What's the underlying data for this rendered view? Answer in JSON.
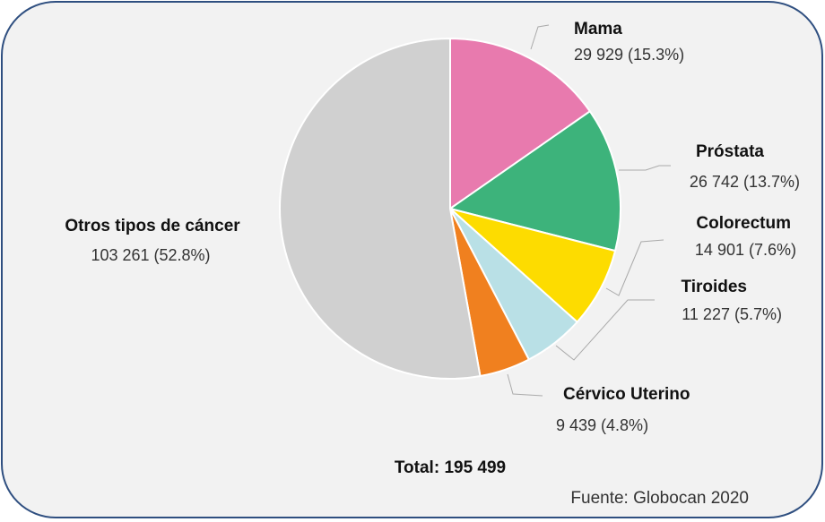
{
  "chart_data": {
    "type": "pie",
    "categories": [
      "Mama",
      "Próstata",
      "Colorectum",
      "Tiroides",
      "Cérvico Uterino",
      "Otros tipos de cáncer"
    ],
    "values": [
      29929,
      26742,
      14901,
      11227,
      9439,
      103261
    ],
    "value_labels": [
      "29 929 (15.3%)",
      "26 742 (13.7%)",
      "14 901 (7.6%)",
      "11 227 (5.7%)",
      "9 439 (4.8%)",
      "103 261 (52.8%)"
    ],
    "colors": [
      "#e87aae",
      "#3db37b",
      "#fddc00",
      "#b9e0e6",
      "#f0801f",
      "#d0d0d0"
    ],
    "annotations": [
      "Total: 195 499",
      "Fuente: Globocan 2020"
    ]
  }
}
